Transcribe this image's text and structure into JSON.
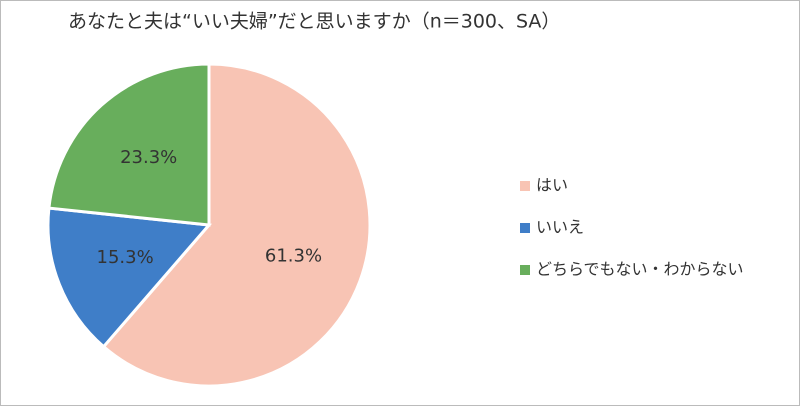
{
  "chart_data": {
    "type": "pie",
    "title": "あなたと夫は“いい夫婦”だと思いますか（n＝300、SA）",
    "categories": [
      "はい",
      "いいえ",
      "どちらでもない・わからない"
    ],
    "values": [
      61.3,
      15.3,
      23.3
    ],
    "value_labels": [
      "61.3%",
      "15.3%",
      "23.3%"
    ],
    "colors": [
      "#f8c4b4",
      "#3f7ec8",
      "#68ae5c"
    ],
    "legend": "right"
  }
}
